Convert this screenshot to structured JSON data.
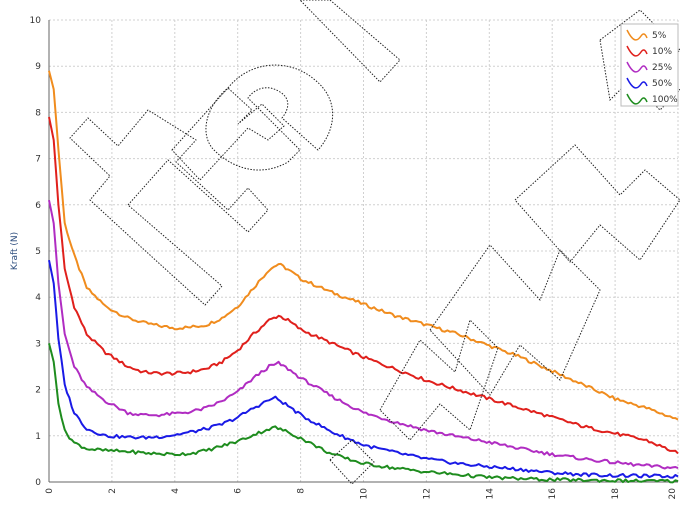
{
  "chart_data": {
    "type": "line",
    "ylabel": "Kraft (N)",
    "xlabel": "",
    "xlim": [
      0,
      20
    ],
    "ylim": [
      0,
      10
    ],
    "x_ticks": [
      0,
      2,
      4,
      6,
      8,
      10,
      12,
      14,
      16,
      18,
      20
    ],
    "y_ticks": [
      0,
      1,
      2,
      3,
      4,
      5,
      6,
      7,
      8,
      9,
      10
    ],
    "grid": true,
    "legend_position": "top-right",
    "series": [
      {
        "name": "5%",
        "color": "#f08c1e",
        "points": [
          [
            0,
            8.9
          ],
          [
            0.15,
            8.5
          ],
          [
            0.3,
            7.2
          ],
          [
            0.5,
            5.6
          ],
          [
            0.8,
            4.9
          ],
          [
            1.2,
            4.2
          ],
          [
            1.8,
            3.8
          ],
          [
            2.5,
            3.55
          ],
          [
            3.0,
            3.45
          ],
          [
            3.5,
            3.38
          ],
          [
            4.0,
            3.33
          ],
          [
            4.5,
            3.35
          ],
          [
            5.0,
            3.4
          ],
          [
            5.5,
            3.55
          ],
          [
            6.0,
            3.8
          ],
          [
            6.5,
            4.2
          ],
          [
            7.0,
            4.6
          ],
          [
            7.3,
            4.72
          ],
          [
            7.6,
            4.6
          ],
          [
            8.0,
            4.4
          ],
          [
            9.0,
            4.1
          ],
          [
            10.0,
            3.85
          ],
          [
            11.0,
            3.6
          ],
          [
            12.0,
            3.4
          ],
          [
            13.0,
            3.2
          ],
          [
            14.0,
            2.95
          ],
          [
            15.0,
            2.7
          ],
          [
            16.0,
            2.4
          ],
          [
            17.0,
            2.1
          ],
          [
            18.0,
            1.8
          ],
          [
            19.0,
            1.6
          ],
          [
            20.0,
            1.35
          ]
        ]
      },
      {
        "name": "10%",
        "color": "#e0201c",
        "points": [
          [
            0,
            7.9
          ],
          [
            0.15,
            7.4
          ],
          [
            0.3,
            6.0
          ],
          [
            0.5,
            4.6
          ],
          [
            0.8,
            3.8
          ],
          [
            1.2,
            3.2
          ],
          [
            1.8,
            2.8
          ],
          [
            2.5,
            2.5
          ],
          [
            3.0,
            2.38
          ],
          [
            3.5,
            2.35
          ],
          [
            4.0,
            2.35
          ],
          [
            4.5,
            2.38
          ],
          [
            5.0,
            2.45
          ],
          [
            5.5,
            2.6
          ],
          [
            6.0,
            2.85
          ],
          [
            6.5,
            3.2
          ],
          [
            7.0,
            3.5
          ],
          [
            7.3,
            3.6
          ],
          [
            7.6,
            3.5
          ],
          [
            8.0,
            3.3
          ],
          [
            9.0,
            3.0
          ],
          [
            10.0,
            2.7
          ],
          [
            11.0,
            2.45
          ],
          [
            12.0,
            2.2
          ],
          [
            13.0,
            2.0
          ],
          [
            14.0,
            1.8
          ],
          [
            15.0,
            1.6
          ],
          [
            16.0,
            1.4
          ],
          [
            17.0,
            1.2
          ],
          [
            18.0,
            1.05
          ],
          [
            19.0,
            0.9
          ],
          [
            20.0,
            0.62
          ]
        ]
      },
      {
        "name": "25%",
        "color": "#b02cc2",
        "points": [
          [
            0,
            6.1
          ],
          [
            0.15,
            5.6
          ],
          [
            0.3,
            4.3
          ],
          [
            0.5,
            3.2
          ],
          [
            0.8,
            2.5
          ],
          [
            1.2,
            2.05
          ],
          [
            1.8,
            1.75
          ],
          [
            2.5,
            1.5
          ],
          [
            3.0,
            1.45
          ],
          [
            3.5,
            1.45
          ],
          [
            4.0,
            1.48
          ],
          [
            4.5,
            1.52
          ],
          [
            5.0,
            1.6
          ],
          [
            5.5,
            1.75
          ],
          [
            6.0,
            1.95
          ],
          [
            6.5,
            2.25
          ],
          [
            7.0,
            2.5
          ],
          [
            7.3,
            2.57
          ],
          [
            7.6,
            2.45
          ],
          [
            8.0,
            2.25
          ],
          [
            9.0,
            1.85
          ],
          [
            10.0,
            1.5
          ],
          [
            11.0,
            1.3
          ],
          [
            12.0,
            1.12
          ],
          [
            13.0,
            0.98
          ],
          [
            14.0,
            0.86
          ],
          [
            15.0,
            0.72
          ],
          [
            16.0,
            0.6
          ],
          [
            17.0,
            0.5
          ],
          [
            18.0,
            0.42
          ],
          [
            19.0,
            0.35
          ],
          [
            20.0,
            0.3
          ]
        ]
      },
      {
        "name": "50%",
        "color": "#1a1ae6",
        "points": [
          [
            0,
            4.8
          ],
          [
            0.15,
            4.3
          ],
          [
            0.3,
            3.1
          ],
          [
            0.5,
            2.1
          ],
          [
            0.8,
            1.5
          ],
          [
            1.2,
            1.15
          ],
          [
            1.8,
            1.0
          ],
          [
            2.5,
            0.97
          ],
          [
            3.0,
            0.96
          ],
          [
            3.5,
            0.98
          ],
          [
            4.0,
            1.02
          ],
          [
            4.5,
            1.08
          ],
          [
            5.0,
            1.15
          ],
          [
            5.5,
            1.25
          ],
          [
            6.0,
            1.4
          ],
          [
            6.5,
            1.6
          ],
          [
            7.0,
            1.78
          ],
          [
            7.2,
            1.82
          ],
          [
            7.6,
            1.65
          ],
          [
            8.0,
            1.45
          ],
          [
            9.0,
            1.08
          ],
          [
            10.0,
            0.8
          ],
          [
            11.0,
            0.64
          ],
          [
            12.0,
            0.5
          ],
          [
            13.0,
            0.4
          ],
          [
            14.0,
            0.33
          ],
          [
            15.0,
            0.27
          ],
          [
            16.0,
            0.2
          ],
          [
            17.0,
            0.16
          ],
          [
            18.0,
            0.14
          ],
          [
            19.0,
            0.13
          ],
          [
            20.0,
            0.12
          ]
        ]
      },
      {
        "name": "100%",
        "color": "#1e8c1e",
        "points": [
          [
            0,
            3.0
          ],
          [
            0.15,
            2.6
          ],
          [
            0.3,
            1.7
          ],
          [
            0.5,
            1.1
          ],
          [
            0.8,
            0.85
          ],
          [
            1.2,
            0.72
          ],
          [
            1.8,
            0.68
          ],
          [
            2.5,
            0.66
          ],
          [
            3.0,
            0.63
          ],
          [
            3.5,
            0.61
          ],
          [
            4.0,
            0.6
          ],
          [
            4.5,
            0.62
          ],
          [
            5.0,
            0.68
          ],
          [
            5.5,
            0.78
          ],
          [
            6.0,
            0.88
          ],
          [
            6.5,
            1.02
          ],
          [
            7.0,
            1.15
          ],
          [
            7.2,
            1.18
          ],
          [
            7.6,
            1.08
          ],
          [
            8.0,
            0.95
          ],
          [
            9.0,
            0.6
          ],
          [
            10.0,
            0.4
          ],
          [
            11.0,
            0.3
          ],
          [
            12.0,
            0.22
          ],
          [
            13.0,
            0.16
          ],
          [
            14.0,
            0.1
          ],
          [
            15.0,
            0.07
          ],
          [
            16.0,
            0.05
          ],
          [
            17.0,
            0.04
          ],
          [
            18.0,
            0.03
          ],
          [
            19.0,
            0.02
          ],
          [
            20.0,
            0.02
          ]
        ]
      }
    ]
  },
  "watermark": {
    "text": "trel www.t"
  }
}
